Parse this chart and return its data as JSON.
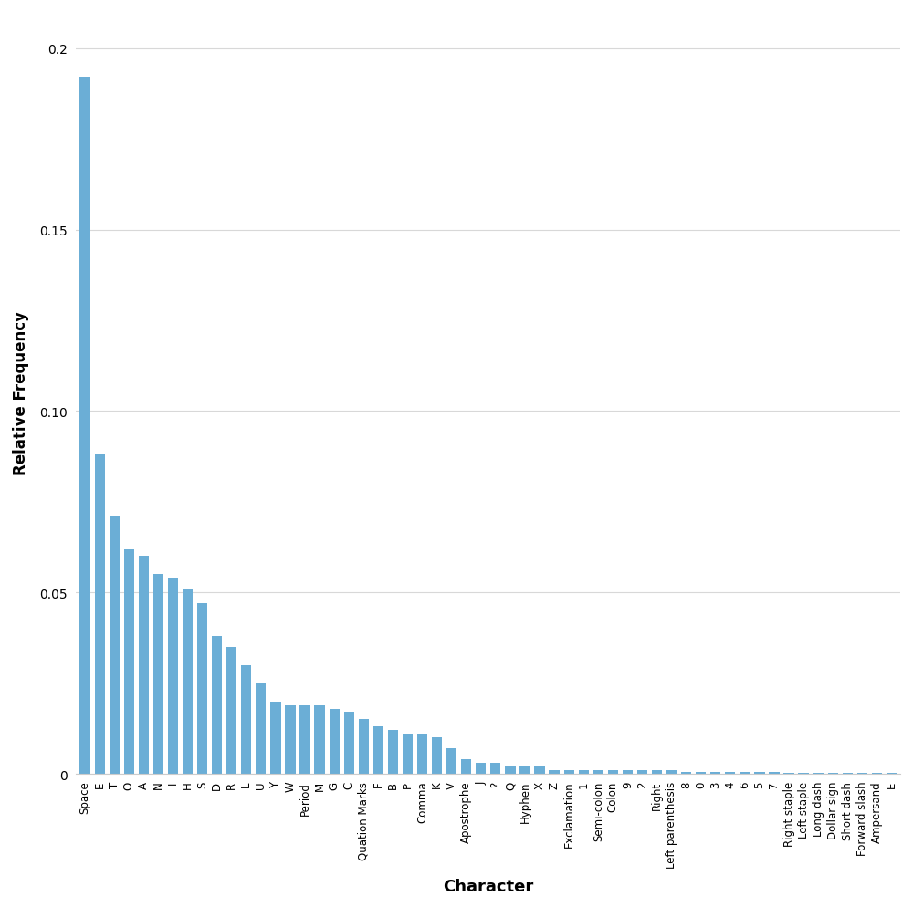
{
  "categories": [
    "Space",
    "E",
    "T",
    "O",
    "A",
    "N",
    "I",
    "H",
    "S",
    "D",
    "R",
    "L",
    "U",
    "Y",
    "W",
    "Period",
    "M",
    "G",
    "C",
    "Quation Marks",
    "F",
    "B",
    "P",
    "Comma",
    "K",
    "V",
    "Apostrophe",
    "J",
    "?",
    "Q",
    "Hyphen",
    "X",
    "Z",
    "Exclamation",
    "1",
    "Semi-colon",
    "Colon",
    "9",
    "2",
    "Right",
    "Left parenthesis",
    "8",
    "0",
    "3",
    "4",
    "6",
    "5",
    "7",
    "Right staple",
    "Left staple",
    "Long dash",
    "Dollar sign",
    "Short dash",
    "Forward slash",
    "Ampersand",
    "E"
  ],
  "values": [
    0.192,
    0.088,
    0.071,
    0.062,
    0.06,
    0.055,
    0.054,
    0.051,
    0.047,
    0.038,
    0.035,
    0.03,
    0.025,
    0.02,
    0.019,
    0.019,
    0.019,
    0.018,
    0.017,
    0.015,
    0.013,
    0.012,
    0.011,
    0.011,
    0.01,
    0.007,
    0.004,
    0.003,
    0.003,
    0.002,
    0.002,
    0.002,
    0.001,
    0.001,
    0.001,
    0.001,
    0.001,
    0.001,
    0.001,
    0.001,
    0.001,
    0.0005,
    0.0005,
    0.0005,
    0.0005,
    0.0005,
    0.0005,
    0.0005,
    0.0003,
    0.0003,
    0.0003,
    0.0003,
    0.0003,
    0.0003,
    0.0003,
    0.0003
  ],
  "bar_color": "#6baed6",
  "xlabel": "Character",
  "ylabel": "Relative Frequency",
  "ylim": [
    0,
    0.21
  ],
  "yticks": [
    0,
    0.05,
    0.1,
    0.15,
    0.2
  ],
  "ytick_labels": [
    "0",
    "0.05",
    "0.10",
    "0.15",
    "0.2"
  ],
  "background_color": "#ffffff",
  "grid_color": "#d8d8d8"
}
